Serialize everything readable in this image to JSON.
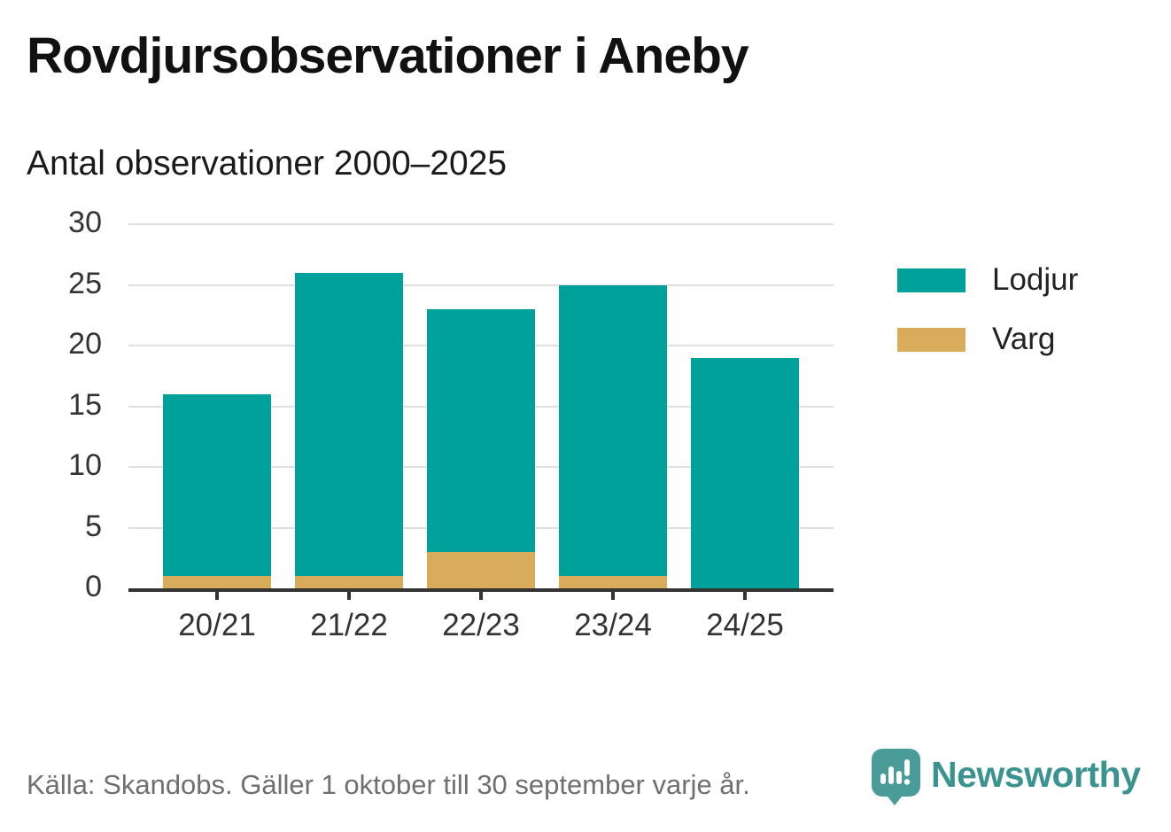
{
  "header": {
    "title": "Rovdjursobservationer i Aneby",
    "subtitle": "Antal observationer 2000–2025"
  },
  "chart_data": {
    "type": "bar",
    "stacked": true,
    "categories": [
      "20/21",
      "21/22",
      "22/23",
      "23/24",
      "24/25"
    ],
    "series": [
      {
        "name": "Lodjur",
        "color": "#00a19a",
        "values": [
          15,
          25,
          20,
          24,
          19
        ]
      },
      {
        "name": "Varg",
        "color": "#d9ac5c",
        "values": [
          1,
          1,
          3,
          1,
          0
        ]
      }
    ],
    "stack_bottom_to_top": [
      "Varg",
      "Lodjur"
    ],
    "totals": [
      16,
      26,
      23,
      25,
      19
    ],
    "title": "Rovdjursobservationer i Aneby",
    "xlabel": "",
    "ylabel": "",
    "ylim": [
      0,
      30
    ],
    "y_ticks": [
      0,
      5,
      10,
      15,
      20,
      25,
      30
    ],
    "grid": true,
    "legend_position": "right"
  },
  "footer": {
    "source": "Källa: Skandobs. Gäller 1 oktober till 30 september varje år.",
    "brand_name": "Newsworthy"
  },
  "colors": {
    "lodjur": "#00a19a",
    "varg": "#d9ac5c",
    "axis": "#333333",
    "grid": "#e0e0e0",
    "tick_text": "#333333",
    "title_text": "#111111",
    "footer_text": "#6f6f73",
    "brand_teal": "#3a938f",
    "logo_teal": "#4a9c98"
  }
}
